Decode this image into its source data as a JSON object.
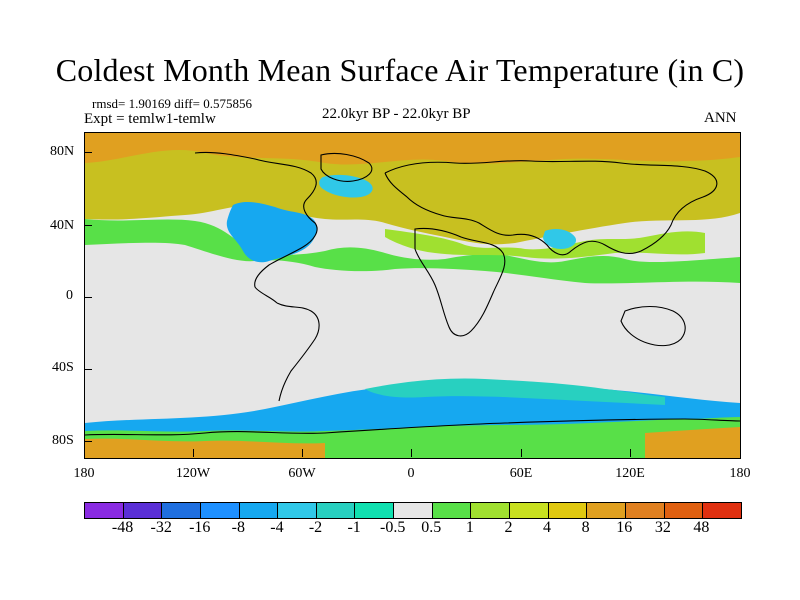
{
  "title": "Coldest Month Mean Surface Air Temperature (in C)",
  "stats_line": "rmsd= 1.90169 diff= 0.575856",
  "expt_line": "Expt = temlw1-temlw",
  "center_line": "22.0kyr BP - 22.0kyr BP",
  "season": "ANN",
  "lat_labels": [
    "80N",
    "40N",
    "0",
    "40S",
    "80S"
  ],
  "lon_labels": [
    "180",
    "120W",
    "60W",
    "0",
    "60E",
    "120E",
    "180"
  ],
  "colorbar": {
    "colors": [
      "#8a2be2",
      "#5a2fd6",
      "#1f6fe0",
      "#1e90ff",
      "#16a8f0",
      "#30c8e8",
      "#28d0c0",
      "#10e0b0",
      "#e6e6e6",
      "#58e048",
      "#a0e030",
      "#c8e020",
      "#e0c810",
      "#e0a020",
      "#e08020",
      "#e06010",
      "#e03010"
    ],
    "labels": [
      "-48",
      "-32",
      "-16",
      "-8",
      "-4",
      "-2",
      "-1",
      "-0.5",
      "0.5",
      "1",
      "2",
      "4",
      "8",
      "16",
      "32",
      "48"
    ]
  },
  "map_colors": {
    "background": "#e6e6e6",
    "warm_strong": "#e0a020",
    "warm": "#c8c020",
    "warm_mid": "#a0e030",
    "warm_light": "#58e048",
    "cool": "#16a8f0",
    "cool_light": "#30c8e8",
    "cool_teal": "#28d0c0",
    "coast": "#000000"
  }
}
